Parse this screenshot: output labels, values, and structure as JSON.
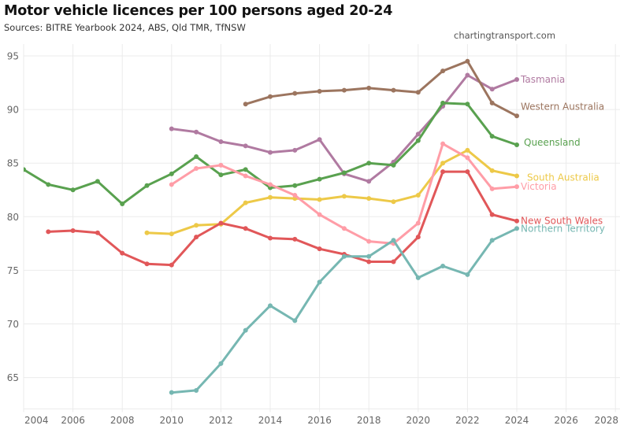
{
  "header": {
    "title": "Motor vehicle licences per 100 persons aged 20-24",
    "subtitle": "Sources: BITRE Yearbook 2024, ABS, Qld TMR, TfNSW",
    "watermark": "chartingtransport.com"
  },
  "chart_data": {
    "type": "line",
    "title": "Motor vehicle licences per 100 persons aged 20-24",
    "xlabel": "",
    "ylabel": "",
    "xlim": [
      2004,
      2028
    ],
    "ylim": [
      62,
      96
    ],
    "x_ticks": [
      "2004",
      "2006",
      "2008",
      "2010",
      "2012",
      "2014",
      "2016",
      "2018",
      "2020",
      "2022",
      "2024",
      "2026",
      "2028"
    ],
    "y_ticks": [
      "65",
      "70",
      "75",
      "80",
      "85",
      "90",
      "95"
    ],
    "grid": true,
    "legend": "direct labels at line ends (right)",
    "series": [
      {
        "name": "Tasmania",
        "color": "#B07AA1",
        "x": [
          2010,
          2011,
          2012,
          2013,
          2014,
          2015,
          2016,
          2017,
          2018,
          2019,
          2020,
          2021,
          2022,
          2023,
          2024
        ],
        "values": [
          88.2,
          87.9,
          87.0,
          86.6,
          86.0,
          86.2,
          87.2,
          84.0,
          83.3,
          85.1,
          87.7,
          90.3,
          93.2,
          91.9,
          92.8
        ]
      },
      {
        "name": "Western Australia",
        "color": "#9C755F",
        "x": [
          2013,
          2014,
          2015,
          2016,
          2017,
          2018,
          2019,
          2020,
          2021,
          2022,
          2023,
          2024
        ],
        "values": [
          90.5,
          91.2,
          91.5,
          91.7,
          91.8,
          92.0,
          91.8,
          91.6,
          93.6,
          94.5,
          90.6,
          89.4
        ]
      },
      {
        "name": "Queensland",
        "color": "#59A14F",
        "x": [
          2004,
          2005,
          2006,
          2007,
          2008,
          2009,
          2010,
          2011,
          2012,
          2013,
          2014,
          2015,
          2016,
          2017,
          2018,
          2019,
          2020,
          2021,
          2022,
          2023,
          2024
        ],
        "values": [
          84.4,
          83.0,
          82.5,
          83.3,
          81.2,
          82.9,
          84.0,
          85.6,
          83.9,
          84.4,
          82.7,
          82.9,
          83.5,
          84.1,
          85.0,
          84.8,
          87.1,
          90.6,
          90.5,
          87.5,
          86.7
        ]
      },
      {
        "name": "South Australia",
        "color": "#EDC948",
        "x": [
          2009,
          2010,
          2011,
          2012,
          2013,
          2014,
          2015,
          2016,
          2017,
          2018,
          2019,
          2020,
          2021,
          2022,
          2023,
          2024
        ],
        "values": [
          78.5,
          78.4,
          79.2,
          79.3,
          81.3,
          81.8,
          81.7,
          81.6,
          81.9,
          81.7,
          81.4,
          82.0,
          85.0,
          86.2,
          84.3,
          83.8
        ]
      },
      {
        "name": "Victoria",
        "color": "#FF9DA7",
        "x": [
          2010,
          2011,
          2012,
          2013,
          2014,
          2015,
          2016,
          2017,
          2018,
          2019,
          2020,
          2021,
          2022,
          2023,
          2024
        ],
        "values": [
          83.0,
          84.5,
          84.8,
          83.8,
          83.0,
          82.0,
          80.2,
          78.9,
          77.7,
          77.5,
          79.4,
          86.8,
          85.5,
          82.6,
          82.8
        ]
      },
      {
        "name": "New South Wales",
        "color": "#E15759",
        "x": [
          2005,
          2006,
          2007,
          2008,
          2009,
          2010,
          2011,
          2012,
          2013,
          2014,
          2015,
          2016,
          2017,
          2018,
          2019,
          2020,
          2021,
          2022,
          2023,
          2024
        ],
        "values": [
          78.6,
          78.7,
          78.5,
          76.6,
          75.6,
          75.5,
          78.1,
          79.4,
          78.9,
          78.0,
          77.9,
          77.0,
          76.5,
          75.8,
          75.8,
          78.1,
          84.2,
          84.2,
          80.2,
          79.6
        ]
      },
      {
        "name": "Northern Territory",
        "color": "#76B7B2",
        "x": [
          2010,
          2011,
          2012,
          2013,
          2014,
          2015,
          2016,
          2017,
          2018,
          2019,
          2020,
          2021,
          2022,
          2023,
          2024
        ],
        "values": [
          63.6,
          63.8,
          66.3,
          69.4,
          71.7,
          70.3,
          73.9,
          76.3,
          76.3,
          77.8,
          74.3,
          75.4,
          74.6,
          77.8,
          78.9
        ]
      }
    ]
  }
}
